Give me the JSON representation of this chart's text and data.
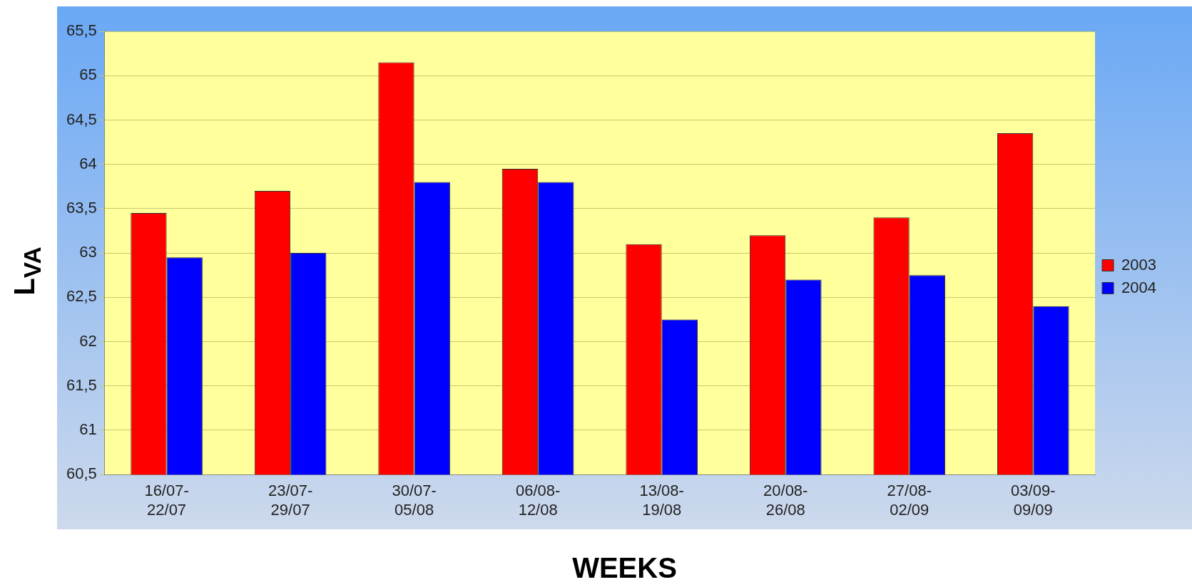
{
  "chart_data": {
    "type": "bar",
    "xlabel": "WEEKS",
    "ylabel": "L$_{VA}$",
    "categories": [
      "16/07-22/07",
      "23/07-29/07",
      "30/07-05/08",
      "06/08-12/08",
      "13/08-19/08",
      "20/08-26/08",
      "27/08-02/09",
      "03/09-09/09"
    ],
    "series": [
      {
        "name": "2003",
        "color": "#ff0000",
        "values": [
          63.45,
          63.7,
          65.15,
          63.95,
          63.1,
          63.2,
          63.4,
          64.35
        ]
      },
      {
        "name": "2004",
        "color": "#0000ff",
        "values": [
          62.95,
          63.0,
          63.8,
          63.8,
          62.25,
          62.7,
          62.75,
          62.4
        ]
      }
    ],
    "ylim": [
      60.5,
      65.5
    ],
    "yticks": [
      {
        "value": 60.5,
        "label": "60,5"
      },
      61,
      {
        "value": 61.5,
        "label": "61,5"
      },
      62,
      {
        "value": 62.5,
        "label": "62,5"
      },
      63,
      {
        "value": 63.5,
        "label": "63,5"
      },
      64,
      {
        "value": 64.5,
        "label": "64,5"
      },
      65,
      {
        "value": 65.5,
        "label": "65,5"
      }
    ],
    "grid": "y",
    "legend": "right"
  }
}
